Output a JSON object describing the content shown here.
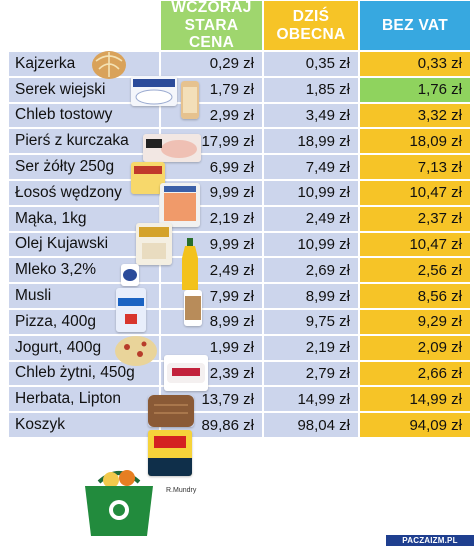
{
  "header": {
    "col_old_line1": "WCZORAJ",
    "col_old_line2": "STARA CENA",
    "col_now_line1": "DZIŚ",
    "col_now_line2": "OBECNA",
    "col_vat": "BEZ VAT"
  },
  "rows": [
    {
      "name": "Kajzerka",
      "old": "0,29 zł",
      "now": "0,35 zł",
      "vat": "0,33 zł"
    },
    {
      "name": "Serek wiejski",
      "old": "1,79 zł",
      "now": "1,85 zł",
      "vat": "1,76 zł"
    },
    {
      "name": "Chleb tostowy",
      "old": "2,99 zł",
      "now": "3,49 zł",
      "vat": "3,32 zł"
    },
    {
      "name": "Pierś z kurczaka",
      "old": "17,99 zł",
      "now": "18,99 zł",
      "vat": "18,09 zł"
    },
    {
      "name": "Ser żółty 250g",
      "old": "6,99 zł",
      "now": "7,49 zł",
      "vat": "7,13 zł"
    },
    {
      "name": "Łosoś wędzony",
      "old": "9,99 zł",
      "now": "10,99 zł",
      "vat": "10,47 zł"
    },
    {
      "name": "Mąka, 1kg",
      "old": "2,19 zł",
      "now": "2,49 zł",
      "vat": "2,37 zł"
    },
    {
      "name": "Olej Kujawski",
      "old": "9,99 zł",
      "now": "10,99 zł",
      "vat": "10,47 zł"
    },
    {
      "name": "Mleko 3,2%",
      "old": "2,49 zł",
      "now": "2,69 zł",
      "vat": "2,56 zł"
    },
    {
      "name": "Musli",
      "old": "7,99 zł",
      "now": "8,99 zł",
      "vat": "8,56 zł"
    },
    {
      "name": "Pizza, 400g",
      "old": "8,99 zł",
      "now": "9,75 zł",
      "vat": "9,29 zł"
    },
    {
      "name": "Jogurt, 400g",
      "old": "1,99 zł",
      "now": "2,19 zł",
      "vat": "2,09 zł"
    },
    {
      "name": "Chleb żytni, 450g",
      "old": "2,39 zł",
      "now": "2,79 zł",
      "vat": "2,66 zł"
    },
    {
      "name": "Herbata, Lipton",
      "old": "13,79 zł",
      "now": "14,99 zł",
      "vat": "14,99 zł"
    },
    {
      "name": "Koszyk",
      "old": "89,86 zł",
      "now": "98,04 zł",
      "vat": "94,09 zł"
    }
  ],
  "highlight_vat_row": 1,
  "colors": {
    "row_bg": "#ccd5ec",
    "header_old": "#9fd66e",
    "header_now": "#f6c427",
    "header_vat": "#37a8e0",
    "vat_cell": "#f6c427",
    "vat_highlight": "#8fd35e"
  },
  "credit": "R.Mundry",
  "watermark": "PACZAIZM.PL",
  "product_images": [
    "kajzerka-roll-image",
    "serek-wiejski-package-image",
    "chleb-tostowy-image",
    "kurczak-package-image",
    "ser-zolty-image",
    "losos-package-image",
    "maka-bag-image",
    "olej-bottle-image",
    "mleko-carton-image",
    "musli-image",
    "pizza-image",
    "jogurt-cup-image",
    "chleb-zytni-image",
    "lipton-box-image",
    "shopping-basket-image"
  ]
}
